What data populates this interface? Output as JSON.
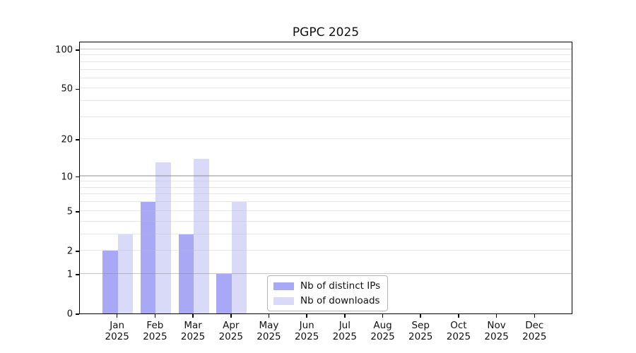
{
  "title": "PGPC 2025",
  "colors": {
    "bar_distinct_ips": "#a8a8f6",
    "bar_downloads": "#d9d9f8",
    "grid_major": "#c9c9c9",
    "grid_minor": "#efefef",
    "axis": "#000000",
    "background": "#ffffff"
  },
  "legend": {
    "item1": "Nb of distinct IPs",
    "item2": "Nb of downloads"
  },
  "chart_data": {
    "type": "bar",
    "title": "PGPC 2025",
    "categories": [
      "Jan",
      "Feb",
      "Mar",
      "Apr",
      "May",
      "Jun",
      "Jul",
      "Aug",
      "Sep",
      "Oct",
      "Nov",
      "Dec"
    ],
    "category_year": "2025",
    "series": [
      {
        "name": "Nb of distinct IPs",
        "color": "#a8a8f6",
        "values": [
          2,
          6,
          3,
          1,
          0,
          0,
          0,
          0,
          0,
          0,
          0,
          0
        ]
      },
      {
        "name": "Nb of downloads",
        "color": "#d9d9f8",
        "values": [
          3,
          13,
          14,
          6,
          0,
          0,
          0,
          0,
          0,
          0,
          0,
          0
        ]
      }
    ],
    "xlabel": "",
    "ylabel": "",
    "yscale": "log1p",
    "ymax": 116,
    "yticks": [
      0,
      1,
      2,
      5,
      10,
      20,
      50,
      100
    ],
    "grid_major_at": [
      1,
      10,
      100
    ],
    "grid_minor_at": [
      2,
      3,
      4,
      5,
      6,
      7,
      8,
      9,
      20,
      30,
      40,
      50,
      60,
      70,
      80,
      90
    ],
    "grid": "on",
    "legend_position": "lower center-right inside"
  }
}
